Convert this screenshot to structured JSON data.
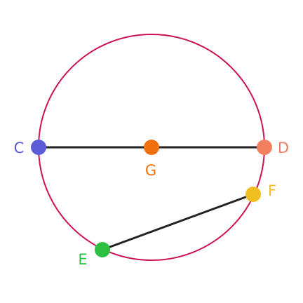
{
  "diagram": {
    "circle": {
      "color": "#cc1155"
    },
    "segments": [
      {
        "id": "CD",
        "from": "C",
        "to": "D",
        "color": "#222222"
      },
      {
        "id": "EF",
        "from": "E",
        "to": "F",
        "color": "#222222"
      }
    ],
    "points": [
      {
        "id": "C",
        "label": "C",
        "color": "#5b5bd6"
      },
      {
        "id": "D",
        "label": "D",
        "color": "#f08060"
      },
      {
        "id": "G",
        "label": "G",
        "color": "#f07010"
      },
      {
        "id": "E",
        "label": "E",
        "color": "#2ec040"
      },
      {
        "id": "F",
        "label": "F",
        "color": "#f0c020"
      }
    ]
  }
}
